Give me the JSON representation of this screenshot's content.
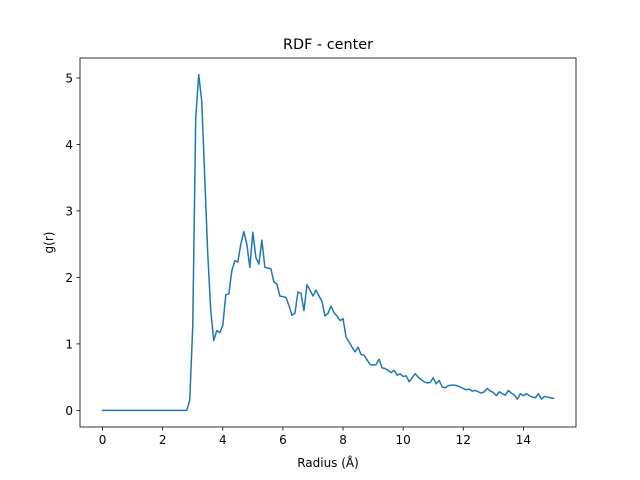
{
  "chart_data": {
    "type": "line",
    "title": "RDF - center",
    "xlabel": "Radius (Å)",
    "ylabel": "g(r)",
    "xlim": [
      -0.75,
      15.75
    ],
    "ylim": [
      -0.25,
      5.3
    ],
    "xticks": [
      0,
      2,
      4,
      6,
      8,
      10,
      12,
      14
    ],
    "yticks": [
      0,
      1,
      2,
      3,
      4,
      5
    ],
    "xtick_labels": [
      "0",
      "2",
      "4",
      "6",
      "8",
      "10",
      "12",
      "14"
    ],
    "ytick_labels": [
      "0",
      "1",
      "2",
      "3",
      "4",
      "5"
    ],
    "grid": false,
    "legend": false,
    "line_color": "#1f77b4",
    "series": [
      {
        "x": [
          0,
          2.8,
          2.9,
          3.0,
          3.1,
          3.2,
          3.3,
          3.4,
          3.5,
          3.6,
          3.7,
          3.8,
          3.9,
          4.0,
          4.1,
          4.2,
          4.3,
          4.4,
          4.5,
          4.6,
          4.7,
          4.8,
          4.9,
          5.0,
          5.1,
          5.2,
          5.3,
          5.4,
          5.5,
          5.6,
          5.7,
          5.8,
          5.9,
          6.0,
          6.1,
          6.2,
          6.3,
          6.4,
          6.5,
          6.6,
          6.7,
          6.8,
          6.9,
          7.0,
          7.1,
          7.2,
          7.3,
          7.4,
          7.5,
          7.6,
          7.7,
          7.8,
          7.9,
          8.0,
          8.1,
          8.2,
          8.3,
          8.4,
          8.5,
          8.6,
          8.7,
          8.8,
          8.9,
          9.0,
          9.1,
          9.2,
          9.3,
          9.4,
          9.5,
          9.6,
          9.7,
          9.8,
          9.9,
          10.0,
          10.1,
          10.2,
          10.3,
          10.4,
          10.5,
          10.6,
          10.7,
          10.8,
          10.9,
          11.0,
          11.1,
          11.2,
          11.3,
          11.4,
          11.5,
          11.6,
          11.7,
          11.8,
          11.9,
          12.0,
          12.1,
          12.2,
          12.3,
          12.4,
          12.5,
          12.6,
          12.7,
          12.8,
          12.9,
          13.0,
          13.1,
          13.2,
          13.3,
          13.4,
          13.5,
          13.6,
          13.7,
          13.8,
          13.9,
          14.0,
          14.1,
          14.2,
          14.3,
          14.4,
          14.5,
          14.6,
          14.7,
          14.8,
          14.9,
          15.0
        ],
        "y": [
          0,
          0,
          0.15,
          1.25,
          4.4,
          5.05,
          4.65,
          3.5,
          2.35,
          1.5,
          1.05,
          1.2,
          1.17,
          1.28,
          1.74,
          1.75,
          2.1,
          2.25,
          2.23,
          2.5,
          2.69,
          2.5,
          2.15,
          2.68,
          2.3,
          2.2,
          2.56,
          2.15,
          2.14,
          2.13,
          1.93,
          1.9,
          1.72,
          1.71,
          1.7,
          1.58,
          1.43,
          1.46,
          1.78,
          1.76,
          1.5,
          1.89,
          1.81,
          1.72,
          1.81,
          1.72,
          1.64,
          1.42,
          1.46,
          1.57,
          1.47,
          1.42,
          1.35,
          1.38,
          1.1,
          1.03,
          0.95,
          0.88,
          0.95,
          0.84,
          0.83,
          0.76,
          0.69,
          0.68,
          0.69,
          0.77,
          0.64,
          0.63,
          0.6,
          0.57,
          0.6,
          0.53,
          0.55,
          0.51,
          0.52,
          0.43,
          0.49,
          0.55,
          0.5,
          0.46,
          0.43,
          0.41,
          0.42,
          0.49,
          0.4,
          0.45,
          0.35,
          0.34,
          0.37,
          0.38,
          0.38,
          0.37,
          0.35,
          0.33,
          0.31,
          0.32,
          0.29,
          0.3,
          0.28,
          0.26,
          0.28,
          0.33,
          0.29,
          0.27,
          0.22,
          0.28,
          0.25,
          0.23,
          0.3,
          0.26,
          0.23,
          0.17,
          0.25,
          0.22,
          0.25,
          0.22,
          0.2,
          0.19,
          0.25,
          0.17,
          0.21,
          0.2,
          0.19,
          0.18
        ]
      }
    ]
  }
}
